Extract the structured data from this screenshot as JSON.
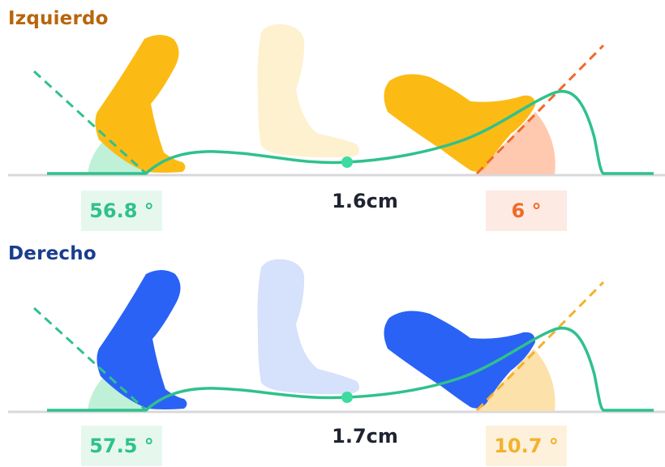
{
  "colors": {
    "left_title": "#b8650c",
    "right_title": "#1a3d8f",
    "gait_line": "#2fc18c",
    "gait_dot": "#3ddb9f",
    "ground": "#d8d8dc",
    "front_angle_fill": "#bff0d8",
    "front_box_bg": "#e6f8ee",
    "front_box_text": "#2fc18c"
  },
  "left": {
    "title": "Izquierdo",
    "front_angle": "56.8 °",
    "distance": "1.6cm",
    "back_angle": "6 °",
    "foot_color": "#fbbb14",
    "foot_ghost_color": "#fdf1d0",
    "back_line_color": "#f06a2a",
    "back_angle_fill": "#ffc9b0",
    "back_box_bg": "#fdeae2",
    "back_box_text": "#f06a2a"
  },
  "right": {
    "title": "Derecho",
    "front_angle": "57.5 °",
    "distance": "1.7cm",
    "back_angle": "10.7 °",
    "foot_color": "#2a62f6",
    "foot_ghost_color": "#d6e1fb",
    "back_line_color": "#f3b12d",
    "back_angle_fill": "#fde1aa",
    "back_box_bg": "#fdf1dc",
    "back_box_text": "#f3b12d"
  }
}
